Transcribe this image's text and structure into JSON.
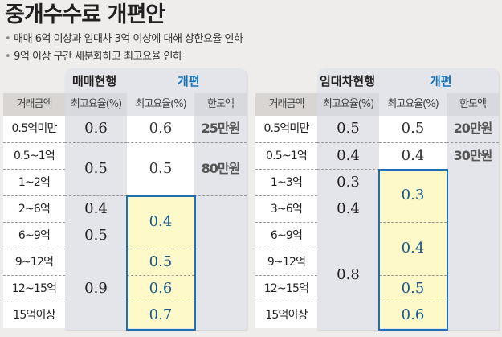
{
  "title": "중개수수료 개편안",
  "bullets": [
    "매매 6억 이상과 임대차 3억 이상에 대해 상한요율 인하",
    "9억 이상 구간 세분화하고 최고요율 인하"
  ],
  "columns": {
    "range": "거래금액",
    "current_rate": "최고요율(%)",
    "new_rate": "최고요율(%)",
    "limit": "한도액"
  },
  "colors": {
    "new_header": "#1a73b8",
    "highlight_fill": "#fdf9c9",
    "highlight_border": "#1f6fb5"
  },
  "sale": {
    "current_label": "매매현행",
    "new_label": "개편",
    "ranges": [
      "0.5억미만",
      "0.5~1억",
      "1~2억",
      "2~6억",
      "6~9억",
      "9~12억",
      "12~15억",
      "15억이상"
    ],
    "current": [
      "0.6",
      "0.5",
      "0.4",
      "0.5",
      "0.9"
    ],
    "new": [
      "0.6",
      "0.5",
      "0.4",
      "0.5",
      "0.6",
      "0.7"
    ],
    "limit": [
      "25만원",
      "80만원"
    ]
  },
  "lease": {
    "current_label": "임대차현행",
    "new_label": "개편",
    "ranges": [
      "0.5억미만",
      "0.5~1억",
      "1~3억",
      "3~6억",
      "6~9억",
      "9~12억",
      "12~15억",
      "15억이상"
    ],
    "current": [
      "0.5",
      "0.4",
      "0.3",
      "0.4",
      "0.8"
    ],
    "new": [
      "0.5",
      "0.4",
      "0.3",
      "0.4",
      "0.5",
      "0.6"
    ],
    "limit": [
      "20만원",
      "30만원"
    ]
  }
}
